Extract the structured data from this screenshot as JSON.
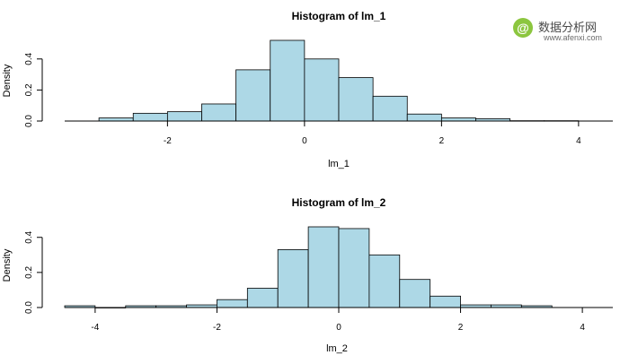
{
  "watermark": {
    "glyph": "@",
    "name": "数据分析网",
    "url": "www.afenxi.com",
    "color": "#8cc63f"
  },
  "chart_data": [
    {
      "type": "bar",
      "title": "Histogram of lm_1",
      "xlabel": "lm_1",
      "ylabel": "Density",
      "bin_width": 0.5,
      "bin_edges": [
        -3.0,
        -2.5,
        -2.0,
        -1.5,
        -1.0,
        -0.5,
        0.0,
        0.5,
        1.0,
        1.5,
        2.0,
        2.5,
        3.0,
        3.5,
        4.0
      ],
      "values": [
        0.02,
        0.05,
        0.06,
        0.11,
        0.33,
        0.52,
        0.4,
        0.28,
        0.16,
        0.045,
        0.02,
        0.015,
        0.002,
        0.002
      ],
      "xticks": [
        -2,
        0,
        2,
        4
      ],
      "xtick_labels": [
        "-2",
        "0",
        "2",
        "4"
      ],
      "yticks": [
        0.0,
        0.2,
        0.4
      ],
      "ytick_labels": [
        "0.0",
        "0.2",
        "0.4"
      ],
      "xlim": [
        -3.5,
        4.5
      ],
      "ylim": [
        0,
        0.52
      ],
      "bar_color": "#add8e6"
    },
    {
      "type": "bar",
      "title": "Histogram of lm_2",
      "xlabel": "lm_2",
      "ylabel": "Density",
      "bin_width": 0.5,
      "bin_edges": [
        -4.5,
        -4.0,
        -3.5,
        -3.0,
        -2.5,
        -2.0,
        -1.5,
        -1.0,
        -0.5,
        0.0,
        0.5,
        1.0,
        1.5,
        2.0,
        2.5,
        3.0,
        3.5
      ],
      "values": [
        0.01,
        0.0,
        0.01,
        0.01,
        0.015,
        0.045,
        0.11,
        0.33,
        0.46,
        0.45,
        0.3,
        0.16,
        0.065,
        0.015,
        0.015,
        0.01
      ],
      "xticks": [
        -4,
        -2,
        0,
        2,
        4
      ],
      "xtick_labels": [
        "-4",
        "-2",
        "0",
        "2",
        "4"
      ],
      "yticks": [
        0.0,
        0.2,
        0.4
      ],
      "ytick_labels": [
        "0.0",
        "0.2",
        "0.4"
      ],
      "xlim": [
        -4.5,
        4.5
      ],
      "ylim": [
        0,
        0.46
      ],
      "bar_color": "#add8e6"
    }
  ]
}
